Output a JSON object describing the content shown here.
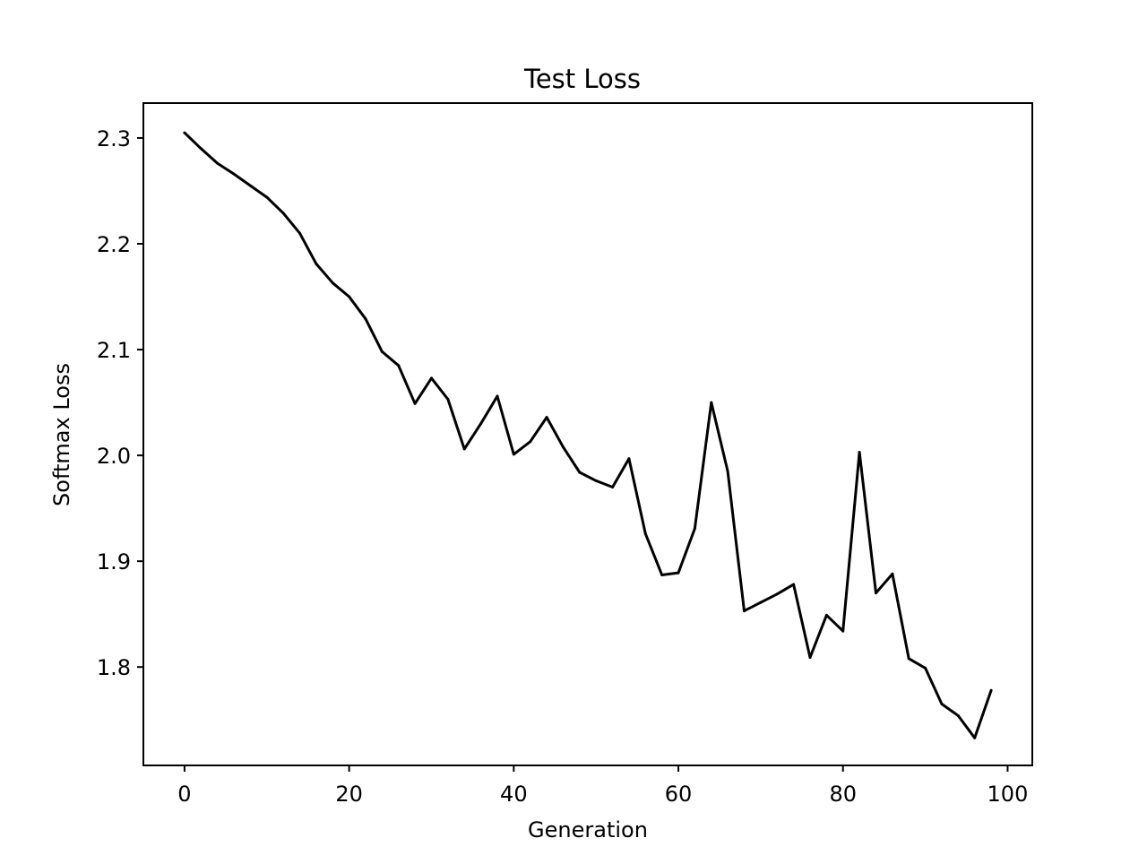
{
  "chart_data": {
    "type": "line",
    "title": "Test Loss",
    "xlabel": "Generation",
    "ylabel": "Softmax Loss",
    "xlim": [
      -5,
      103
    ],
    "ylim": [
      1.707,
      2.333
    ],
    "xticks": [
      0,
      20,
      40,
      60,
      80,
      100
    ],
    "xtick_labels": [
      "0",
      "20",
      "40",
      "60",
      "80",
      "100"
    ],
    "yticks": [
      1.8,
      1.9,
      2.0,
      2.1,
      2.2,
      2.3
    ],
    "ytick_labels": [
      "1.8",
      "1.9",
      "2.0",
      "2.1",
      "2.2",
      "2.3"
    ],
    "grid": false,
    "legend": "none",
    "line_color": "#000000",
    "series": [
      {
        "x": [
          0,
          2,
          4,
          6,
          8,
          10,
          12,
          14,
          16,
          18,
          20,
          22,
          24,
          26,
          28,
          30,
          32,
          34,
          36,
          38,
          40,
          42,
          44,
          46,
          48,
          50,
          52,
          54,
          56,
          58,
          60,
          62,
          64,
          66,
          68,
          70,
          72,
          74,
          76,
          78,
          80,
          82,
          84,
          86,
          88,
          90,
          92,
          94,
          96,
          98
        ],
        "values": [
          2.305,
          2.29,
          2.276,
          2.266,
          2.255,
          2.244,
          2.229,
          2.21,
          2.181,
          2.163,
          2.15,
          2.129,
          2.098,
          2.085,
          2.049,
          2.073,
          2.053,
          2.006,
          2.03,
          2.056,
          2.001,
          2.013,
          2.036,
          2.008,
          1.984,
          1.976,
          1.97,
          1.997,
          1.926,
          1.887,
          1.889,
          1.931,
          2.05,
          1.985,
          1.853,
          1.861,
          1.869,
          1.878,
          1.809,
          1.849,
          1.834,
          2.003,
          1.87,
          1.888,
          1.808,
          1.799,
          1.765,
          1.754,
          1.733,
          1.778
        ]
      }
    ]
  }
}
